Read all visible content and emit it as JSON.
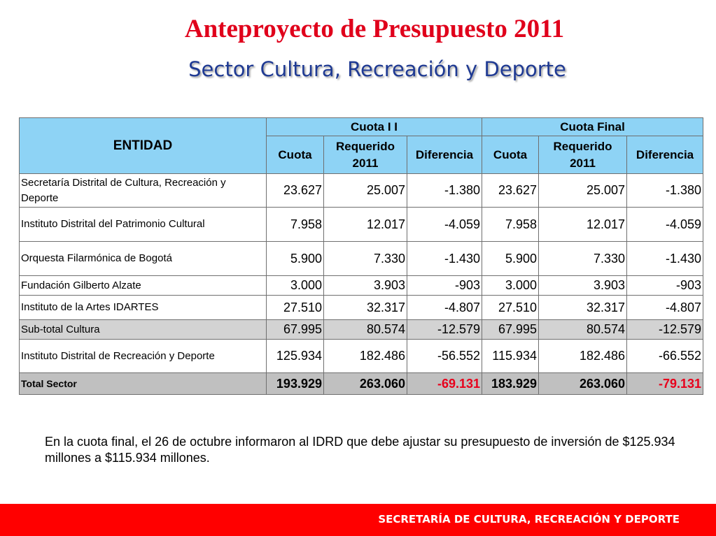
{
  "header": {
    "title": "Anteproyecto  de Presupuesto 2011",
    "subtitle": "Sector Cultura, Recreación y Deporte"
  },
  "table": {
    "entity_header": "ENTIDAD",
    "group1": "Cuota I I",
    "group2": "Cuota Final",
    "sub_headers": [
      "Cuota",
      "Requerido 2011",
      "Diferencia",
      "Cuota",
      "Requerido 2011",
      "Diferencia"
    ],
    "rows": [
      {
        "name": "Secretaría Distrital de Cultura, Recreación y Deporte",
        "values": [
          "23.627",
          "25.007",
          "-1.380",
          "23.627",
          "25.007",
          "-1.380"
        ]
      },
      {
        "name": "Instituto Distrital del Patrimonio Cultural",
        "values": [
          "7.958",
          "12.017",
          "-4.059",
          "7.958",
          "12.017",
          "-4.059"
        ]
      },
      {
        "name": "Orquesta Filarmónica de Bogotá",
        "values": [
          "5.900",
          "7.330",
          "-1.430",
          "5.900",
          "7.330",
          "-1.430"
        ]
      },
      {
        "name": "Fundación Gilberto Alzate",
        "values": [
          "3.000",
          "3.903",
          "-903",
          "3.000",
          "3.903",
          "-903"
        ]
      },
      {
        "name": "Instituto de la Artes IDARTES",
        "values": [
          "27.510",
          "32.317",
          "-4.807",
          "27.510",
          "32.317",
          "-4.807"
        ]
      },
      {
        "name": "Sub-total Cultura",
        "values": [
          "67.995",
          "80.574",
          "-12.579",
          "67.995",
          "80.574",
          "-12.579"
        ]
      },
      {
        "name": "Instituto Distrital de Recreación y Deporte",
        "values": [
          "125.934",
          "182.486",
          "-56.552",
          "115.934",
          "182.486",
          "-66.552"
        ]
      },
      {
        "name": "Total Sector",
        "values": [
          "193.929",
          "263.060",
          "-69.131",
          "183.929",
          "263.060",
          "-79.131"
        ]
      }
    ]
  },
  "note": "En la cuota final, el 26 de octubre informaron al IDRD que debe ajustar su presupuesto de inversión  de $125.934 millones a $115.934 millones.",
  "footer": {
    "text": "SECRETARÍA DE CULTURA, RECREACIÓN Y DEPORTE",
    "color": "#ff0000"
  },
  "colors": {
    "title": "#e0001b",
    "subtitle": "#1f3a93",
    "header_bg": "#8ed3f5",
    "subtotal_bg": "#d3d3d3",
    "total_bg": "#c0c0c0",
    "negative_total": "#e8001c"
  }
}
